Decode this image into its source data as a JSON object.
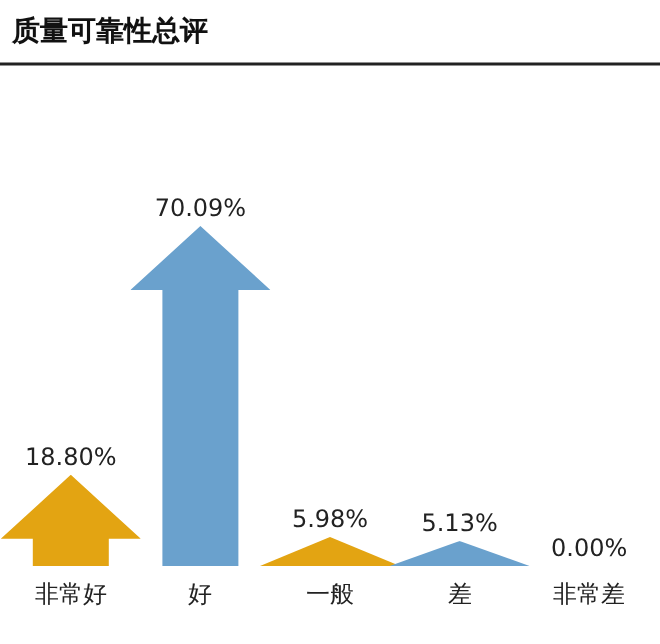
{
  "chart_data": {
    "type": "bar",
    "title": "质量可靠性总评",
    "categories": [
      "非常好",
      "好",
      "一般",
      "差",
      "非常差"
    ],
    "values": [
      18.8,
      70.09,
      5.98,
      5.13,
      0.0
    ],
    "colors": [
      "#e3a412",
      "#6aa1cd",
      "#e3a412",
      "#6aa1cd",
      "#e3a412"
    ],
    "value_labels": [
      "18.80%",
      "70.09%",
      "5.98%",
      "5.13%",
      "0.00%"
    ]
  }
}
